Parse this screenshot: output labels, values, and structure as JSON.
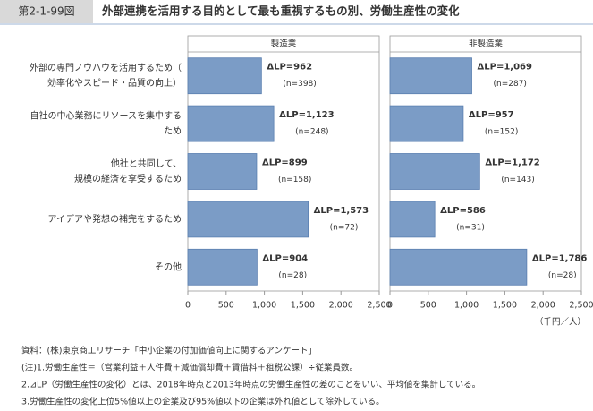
{
  "header": {
    "badge": "第2-1-99図",
    "title": "外部連携を活用する目的として最も重視するもの別、労働生産性の変化"
  },
  "chart_data": {
    "type": "hbar",
    "categories": [
      [
        "外部の専門ノウハウを活用するため（",
        "効率化やスピード・品質の向上）"
      ],
      [
        "自社の中心業務にリソースを集中する",
        "ため"
      ],
      [
        "他社と共同して、",
        "規模の経済を享受するため"
      ],
      [
        "アイデアや発想の補完をするため"
      ],
      [
        "その他"
      ]
    ],
    "series": [
      {
        "name": "製造業",
        "color": "#7b9cc6",
        "values": [
          962,
          1123,
          899,
          1573,
          904
        ],
        "value_labels": [
          "ΔLP=962",
          "ΔLP=1,123",
          "ΔLP=899",
          "ΔLP=1,573",
          "ΔLP=904"
        ],
        "n_labels": [
          "(n=398)",
          "(n=248)",
          "(n=158)",
          "(n=72)",
          "(n=28)"
        ]
      },
      {
        "name": "非製造業",
        "color": "#7b9cc6",
        "values": [
          1069,
          957,
          1172,
          586,
          1786
        ],
        "value_labels": [
          "ΔLP=1,069",
          "ΔLP=957",
          "ΔLP=1,172",
          "ΔLP=586",
          "ΔLP=1,786"
        ],
        "n_labels": [
          "(n=287)",
          "(n=152)",
          "(n=143)",
          "(n=31)",
          "(n=28)"
        ]
      }
    ],
    "xlim": [
      0,
      2500
    ],
    "xticks": [
      0,
      500,
      {
        "value": 1000,
        "label": "1,000"
      },
      {
        "value": 1500,
        "label": "1,500"
      },
      {
        "value": 2000,
        "label": "2,000"
      },
      {
        "value": 2500,
        "label": "2,500"
      }
    ],
    "unit": "（千円／人）"
  },
  "notes": [
    "資料：(株)東京商工リサーチ「中小企業の付加価値向上に関するアンケート」",
    "(注)1.労働生産性＝（営業利益＋人件費＋減価償却費＋賃借料＋租税公課）÷従業員数。",
    "2.⊿LP（労働生産性の変化）とは、2018年時点と2013年時点の労働生産性の差のことをいい、平均値を集計している。",
    "3.労働生産性の変化上位5%値以上の企業及び95%値以下の企業は外れ値として除外している。"
  ]
}
